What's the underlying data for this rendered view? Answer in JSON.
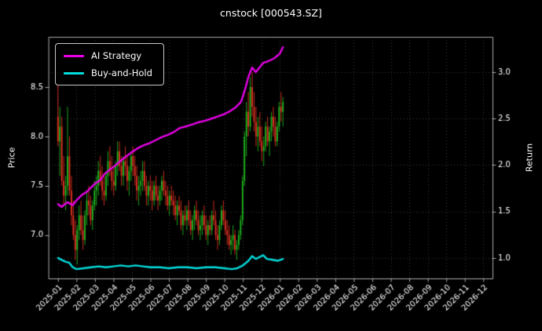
{
  "chart_data": {
    "type": "candlestick+line",
    "title": "cnstock [000543.SZ]",
    "ylabel_left": "Price",
    "ylabel_right": "Return",
    "grid": true,
    "x_tick_labels": [
      "2025-01",
      "2025-02",
      "2025-03",
      "2025-04",
      "2025-05",
      "2025-06",
      "2025-07",
      "2025-08",
      "2025-09",
      "2025-10",
      "2025-11",
      "2025-12",
      "2026-01",
      "2026-02",
      "2026-03",
      "2026-04",
      "2026-05",
      "2026-06",
      "2026-07",
      "2026-08",
      "2026-09",
      "2026-10",
      "2026-11",
      "2026-12"
    ],
    "price_ticks": [
      7.0,
      7.5,
      8.0,
      8.5
    ],
    "return_ticks": [
      1.0,
      1.5,
      2.0,
      2.5,
      3.0
    ],
    "price_range": [
      6.56,
      9.01
    ],
    "return_range": [
      0.78,
      3.38
    ],
    "x_range_months": [
      -0.5,
      23.5
    ],
    "colors": {
      "background": "#000000",
      "text": "#ffffff",
      "grid": "#3a3a3a",
      "spine": "#aaaaaa",
      "candle_up": "#1db41d",
      "candle_down": "#e03020"
    },
    "legend": {
      "position": "upper-left",
      "entries": [
        {
          "label": "AI Strategy",
          "color": "#e800e8"
        },
        {
          "label": "Buy-and-Hold",
          "color": "#00dcdc"
        }
      ]
    },
    "candles": {
      "t_start": 0.0,
      "t_step": 0.104,
      "ohlc": [
        [
          8.2,
          8.65,
          7.9,
          7.95
        ],
        [
          7.95,
          8.3,
          7.6,
          8.1
        ],
        [
          8.1,
          8.2,
          7.5,
          7.55
        ],
        [
          7.55,
          7.8,
          7.3,
          7.4
        ],
        [
          7.4,
          7.6,
          7.25,
          7.5
        ],
        [
          7.5,
          8.3,
          7.4,
          7.8
        ],
        [
          7.8,
          8.0,
          7.4,
          7.45
        ],
        [
          7.45,
          7.6,
          7.1,
          7.2
        ],
        [
          7.2,
          7.35,
          6.95,
          7.0
        ],
        [
          7.0,
          7.15,
          6.75,
          6.85
        ],
        [
          6.85,
          7.1,
          6.7,
          7.05
        ],
        [
          7.05,
          7.3,
          6.95,
          7.2
        ],
        [
          7.2,
          7.35,
          7.0,
          7.05
        ],
        [
          7.05,
          7.2,
          6.85,
          6.95
        ],
        [
          6.95,
          7.25,
          6.9,
          7.2
        ],
        [
          7.2,
          7.45,
          7.1,
          7.35
        ],
        [
          7.35,
          7.5,
          7.2,
          7.3
        ],
        [
          7.3,
          7.4,
          7.1,
          7.15
        ],
        [
          7.15,
          7.35,
          7.05,
          7.3
        ],
        [
          7.3,
          7.55,
          7.25,
          7.45
        ],
        [
          7.45,
          7.6,
          7.3,
          7.5
        ],
        [
          7.5,
          7.75,
          7.4,
          7.65
        ],
        [
          7.65,
          7.8,
          7.5,
          7.55
        ],
        [
          7.55,
          7.7,
          7.35,
          7.45
        ],
        [
          7.45,
          7.6,
          7.3,
          7.4
        ],
        [
          7.4,
          7.65,
          7.35,
          7.6
        ],
        [
          7.6,
          7.85,
          7.5,
          7.75
        ],
        [
          7.75,
          7.9,
          7.6,
          7.65
        ],
        [
          7.65,
          7.8,
          7.45,
          7.55
        ],
        [
          7.55,
          7.7,
          7.4,
          7.5
        ],
        [
          7.5,
          7.75,
          7.45,
          7.7
        ],
        [
          7.7,
          7.95,
          7.6,
          7.85
        ],
        [
          7.85,
          7.95,
          7.65,
          7.7
        ],
        [
          7.7,
          7.8,
          7.5,
          7.6
        ],
        [
          7.6,
          7.8,
          7.5,
          7.75
        ],
        [
          7.75,
          7.9,
          7.6,
          7.7
        ],
        [
          7.7,
          7.8,
          7.45,
          7.55
        ],
        [
          7.55,
          7.7,
          7.4,
          7.65
        ],
        [
          7.65,
          7.85,
          7.55,
          7.8
        ],
        [
          7.8,
          7.9,
          7.6,
          7.7
        ],
        [
          7.7,
          7.8,
          7.5,
          7.6
        ],
        [
          7.6,
          7.7,
          7.35,
          7.45
        ],
        [
          7.45,
          7.6,
          7.3,
          7.5
        ],
        [
          7.5,
          7.65,
          7.4,
          7.55
        ],
        [
          7.55,
          7.75,
          7.45,
          7.65
        ],
        [
          7.65,
          7.75,
          7.45,
          7.5
        ],
        [
          7.5,
          7.6,
          7.3,
          7.4
        ],
        [
          7.4,
          7.55,
          7.3,
          7.5
        ],
        [
          7.5,
          7.6,
          7.35,
          7.45
        ],
        [
          7.45,
          7.55,
          7.25,
          7.35
        ],
        [
          7.35,
          7.55,
          7.3,
          7.5
        ],
        [
          7.5,
          7.6,
          7.35,
          7.4
        ],
        [
          7.4,
          7.5,
          7.25,
          7.35
        ],
        [
          7.35,
          7.5,
          7.3,
          7.45
        ],
        [
          7.45,
          7.6,
          7.35,
          7.55
        ],
        [
          7.55,
          7.65,
          7.4,
          7.45
        ],
        [
          7.45,
          7.55,
          7.3,
          7.4
        ],
        [
          7.4,
          7.5,
          7.25,
          7.3
        ],
        [
          7.3,
          7.45,
          7.2,
          7.4
        ],
        [
          7.4,
          7.5,
          7.3,
          7.35
        ],
        [
          7.35,
          7.45,
          7.2,
          7.3
        ],
        [
          7.3,
          7.4,
          7.15,
          7.2
        ],
        [
          7.2,
          7.35,
          7.1,
          7.3
        ],
        [
          7.3,
          7.4,
          7.2,
          7.25
        ],
        [
          7.25,
          7.35,
          7.05,
          7.1
        ],
        [
          7.1,
          7.25,
          7.0,
          7.2
        ],
        [
          7.2,
          7.3,
          7.1,
          7.15
        ],
        [
          7.15,
          7.3,
          7.05,
          7.25
        ],
        [
          7.25,
          7.35,
          7.1,
          7.15
        ],
        [
          7.15,
          7.25,
          7.0,
          7.05
        ],
        [
          7.05,
          7.2,
          6.95,
          7.15
        ],
        [
          7.15,
          7.3,
          7.05,
          7.25
        ],
        [
          7.25,
          7.35,
          7.1,
          7.15
        ],
        [
          7.15,
          7.25,
          7.0,
          7.05
        ],
        [
          7.05,
          7.2,
          6.95,
          7.1
        ],
        [
          7.1,
          7.25,
          7.0,
          7.2
        ],
        [
          7.2,
          7.3,
          7.05,
          7.1
        ],
        [
          7.1,
          7.2,
          6.95,
          7.0
        ],
        [
          7.0,
          7.15,
          6.9,
          7.1
        ],
        [
          7.1,
          7.2,
          7.0,
          7.05
        ],
        [
          7.05,
          7.25,
          7.0,
          7.2
        ],
        [
          7.2,
          7.35,
          7.1,
          7.15
        ],
        [
          7.15,
          7.25,
          6.95,
          7.0
        ],
        [
          7.0,
          7.1,
          6.85,
          6.95
        ],
        [
          6.95,
          7.15,
          6.9,
          7.1
        ],
        [
          7.1,
          7.3,
          7.05,
          7.25
        ],
        [
          7.25,
          7.35,
          7.1,
          7.15
        ],
        [
          7.15,
          7.25,
          7.0,
          7.05
        ],
        [
          7.05,
          7.15,
          6.9,
          7.0
        ],
        [
          7.0,
          7.1,
          6.85,
          6.9
        ],
        [
          6.9,
          7.0,
          6.8,
          6.95
        ],
        [
          6.95,
          7.1,
          6.85,
          7.0
        ],
        [
          7.0,
          7.05,
          6.8,
          6.85
        ],
        [
          6.85,
          6.95,
          6.75,
          6.9
        ],
        [
          6.9,
          7.05,
          6.85,
          7.0
        ],
        [
          7.0,
          7.2,
          6.95,
          7.15
        ],
        [
          7.15,
          7.6,
          7.1,
          7.55
        ],
        [
          7.55,
          8.05,
          7.5,
          8.0
        ],
        [
          8.0,
          8.35,
          7.8,
          8.25
        ],
        [
          8.25,
          8.45,
          8.0,
          8.1
        ],
        [
          8.1,
          8.6,
          8.05,
          8.5
        ],
        [
          8.5,
          8.65,
          8.2,
          8.3
        ],
        [
          8.3,
          8.45,
          8.05,
          8.15
        ],
        [
          8.15,
          8.3,
          7.9,
          8.0
        ],
        [
          8.0,
          8.2,
          7.85,
          8.1
        ],
        [
          8.1,
          8.25,
          7.9,
          7.95
        ],
        [
          7.95,
          8.1,
          7.75,
          7.85
        ],
        [
          7.85,
          8.0,
          7.7,
          7.9
        ],
        [
          7.9,
          8.15,
          7.85,
          8.1
        ],
        [
          8.1,
          8.2,
          7.9,
          7.95
        ],
        [
          7.95,
          8.1,
          7.8,
          8.05
        ],
        [
          8.05,
          8.25,
          7.95,
          8.2
        ],
        [
          8.2,
          8.3,
          8.0,
          8.1
        ],
        [
          8.1,
          8.2,
          7.9,
          7.95
        ],
        [
          7.95,
          8.15,
          7.9,
          8.1
        ],
        [
          8.1,
          8.35,
          8.05,
          8.3
        ],
        [
          8.3,
          8.45,
          8.15,
          8.25
        ],
        [
          8.25,
          8.4,
          8.1,
          8.35
        ]
      ]
    },
    "series": [
      {
        "name": "AI Strategy",
        "axis": "return",
        "color": "#e800e8",
        "width": 2.4,
        "points": [
          [
            0,
            1.58
          ],
          [
            0.2,
            1.55
          ],
          [
            0.5,
            1.6
          ],
          [
            0.8,
            1.57
          ],
          [
            1.0,
            1.62
          ],
          [
            1.3,
            1.68
          ],
          [
            1.6,
            1.72
          ],
          [
            2.0,
            1.8
          ],
          [
            2.3,
            1.84
          ],
          [
            2.5,
            1.9
          ],
          [
            2.8,
            1.95
          ],
          [
            3.0,
            1.98
          ],
          [
            3.3,
            2.03
          ],
          [
            3.6,
            2.08
          ],
          [
            4.0,
            2.14
          ],
          [
            4.3,
            2.18
          ],
          [
            4.6,
            2.21
          ],
          [
            5.0,
            2.24
          ],
          [
            5.3,
            2.27
          ],
          [
            5.6,
            2.3
          ],
          [
            6.0,
            2.33
          ],
          [
            6.3,
            2.36
          ],
          [
            6.6,
            2.4
          ],
          [
            7.0,
            2.42
          ],
          [
            7.3,
            2.44
          ],
          [
            7.6,
            2.46
          ],
          [
            8.0,
            2.48
          ],
          [
            8.3,
            2.5
          ],
          [
            8.6,
            2.52
          ],
          [
            9.0,
            2.55
          ],
          [
            9.3,
            2.58
          ],
          [
            9.6,
            2.62
          ],
          [
            9.9,
            2.68
          ],
          [
            10.1,
            2.8
          ],
          [
            10.3,
            2.95
          ],
          [
            10.5,
            3.05
          ],
          [
            10.7,
            3.0
          ],
          [
            10.9,
            3.05
          ],
          [
            11.1,
            3.1
          ],
          [
            11.4,
            3.12
          ],
          [
            11.7,
            3.15
          ],
          [
            12.0,
            3.2
          ],
          [
            12.17,
            3.27
          ]
        ]
      },
      {
        "name": "Buy-and-Hold",
        "axis": "return",
        "color": "#00dcdc",
        "width": 2.4,
        "points": [
          [
            0,
            1.0
          ],
          [
            0.2,
            0.98
          ],
          [
            0.4,
            0.96
          ],
          [
            0.6,
            0.95
          ],
          [
            0.8,
            0.9
          ],
          [
            1.0,
            0.88
          ],
          [
            1.4,
            0.89
          ],
          [
            1.8,
            0.9
          ],
          [
            2.2,
            0.91
          ],
          [
            2.6,
            0.9
          ],
          [
            3.0,
            0.91
          ],
          [
            3.4,
            0.92
          ],
          [
            3.8,
            0.91
          ],
          [
            4.2,
            0.92
          ],
          [
            4.6,
            0.91
          ],
          [
            5.0,
            0.9
          ],
          [
            5.5,
            0.9
          ],
          [
            6.0,
            0.89
          ],
          [
            6.5,
            0.9
          ],
          [
            7.0,
            0.9
          ],
          [
            7.5,
            0.89
          ],
          [
            8.0,
            0.9
          ],
          [
            8.5,
            0.9
          ],
          [
            9.0,
            0.89
          ],
          [
            9.4,
            0.88
          ],
          [
            9.7,
            0.89
          ],
          [
            10.0,
            0.92
          ],
          [
            10.3,
            0.97
          ],
          [
            10.5,
            1.02
          ],
          [
            10.7,
            0.99
          ],
          [
            10.9,
            1.01
          ],
          [
            11.1,
            1.03
          ],
          [
            11.3,
            0.99
          ],
          [
            11.6,
            0.98
          ],
          [
            11.9,
            0.97
          ],
          [
            12.17,
            0.99
          ]
        ]
      }
    ]
  }
}
